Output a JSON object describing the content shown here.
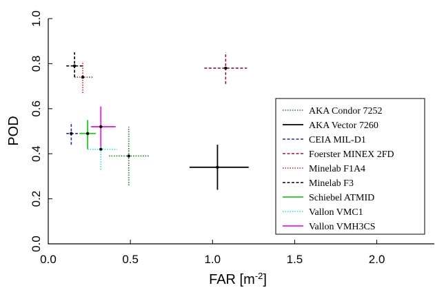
{
  "chart_data": {
    "type": "scatter",
    "title": "",
    "xlabel": "FAR [m",
    "xlabel_sup": "-2",
    "xlabel_close": "]",
    "ylabel": "POD",
    "xlim": [
      0,
      2.35
    ],
    "ylim": [
      0,
      1.0
    ],
    "xticks": [
      0.0,
      0.5,
      1.0,
      1.5,
      2.0
    ],
    "xtick_labels": [
      "0.0",
      "0.5",
      "1.0",
      "1.5",
      "2.0"
    ],
    "yticks": [
      0.0,
      0.2,
      0.4,
      0.6,
      0.8,
      1.0
    ],
    "ytick_labels": [
      "0.0",
      "0.2",
      "0.4",
      "0.6",
      "0.8",
      "1.0"
    ],
    "grid": false,
    "legend_position": "right",
    "series": [
      {
        "name": "AKA Condor 7252",
        "color": "#1f7a1f",
        "dash": "dotted",
        "x": 0.49,
        "y": 0.39,
        "xerr": [
          0.37,
          0.62
        ],
        "yerr": [
          0.26,
          0.52
        ]
      },
      {
        "name": "AKA Vector 7260",
        "color": "#000000",
        "dash": "solid",
        "x": 1.03,
        "y": 0.34,
        "xerr": [
          0.86,
          1.22
        ],
        "yerr": [
          0.24,
          0.44
        ]
      },
      {
        "name": "CEIA MIL-D1",
        "color": "#1f2fa0",
        "dash": "dashed",
        "x": 0.14,
        "y": 0.49,
        "xerr": [
          0.11,
          0.18
        ],
        "yerr": [
          0.44,
          0.54
        ]
      },
      {
        "name": "Foerster MINEX 2FD",
        "color": "#8b1a2b",
        "dash": "dashed",
        "x": 1.08,
        "y": 0.78,
        "xerr": [
          0.95,
          1.21
        ],
        "yerr": [
          0.71,
          0.85
        ]
      },
      {
        "name": "Minelab F1A4",
        "color": "#b22222",
        "dash": "dotted",
        "x": 0.21,
        "y": 0.74,
        "xerr": [
          0.16,
          0.27
        ],
        "yerr": [
          0.67,
          0.81
        ]
      },
      {
        "name": "Minelab F3",
        "color": "#000000",
        "dash": "dashed",
        "x": 0.16,
        "y": 0.79,
        "xerr": [
          0.11,
          0.21
        ],
        "yerr": [
          0.74,
          0.85
        ]
      },
      {
        "name": "Schiebel ATMID",
        "color": "#22c322",
        "dash": "solid",
        "x": 0.24,
        "y": 0.49,
        "xerr": [
          0.19,
          0.29
        ],
        "yerr": [
          0.42,
          0.55
        ]
      },
      {
        "name": "Vallon VMC1",
        "color": "#33d6e0",
        "dash": "dotted",
        "x": 0.32,
        "y": 0.42,
        "xerr": [
          0.24,
          0.42
        ],
        "yerr": [
          0.33,
          0.5
        ]
      },
      {
        "name": "Vallon VMH3CS",
        "color": "#e020e0",
        "dash": "solid",
        "x": 0.32,
        "y": 0.52,
        "xerr": [
          0.26,
          0.41
        ],
        "yerr": [
          0.43,
          0.61
        ]
      }
    ]
  }
}
